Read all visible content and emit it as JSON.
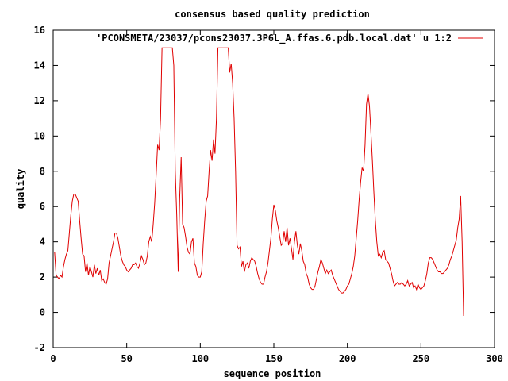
{
  "chart_data": {
    "type": "line",
    "title": "consensus based quality prediction",
    "xlabel": "sequence position",
    "ylabel": "quality",
    "xlim": [
      0,
      300
    ],
    "ylim": [
      -2,
      16
    ],
    "x_ticks": [
      "0",
      "50",
      "100",
      "150",
      "200",
      "250",
      "300"
    ],
    "y_ticks": [
      "-2",
      "0",
      "2",
      "4",
      "6",
      "8",
      "10",
      "12",
      "14",
      "16"
    ],
    "grid": false,
    "legend_position": "top-right",
    "series": [
      {
        "name": "'PCONSMETA/23037/pcons23037.3P6L_A.ffas.6.pdb.local.dat' u 1:2",
        "color": "#e00000",
        "points": [
          [
            1,
            3.4
          ],
          [
            2,
            2.1
          ],
          [
            3,
            2.0
          ],
          [
            4,
            1.9
          ],
          [
            5,
            2.1
          ],
          [
            6,
            2.0
          ],
          [
            7,
            2.6
          ],
          [
            8,
            3.0
          ],
          [
            9,
            3.3
          ],
          [
            10,
            3.5
          ],
          [
            11,
            4.5
          ],
          [
            12,
            5.5
          ],
          [
            13,
            6.3
          ],
          [
            14,
            6.7
          ],
          [
            15,
            6.7
          ],
          [
            16,
            6.5
          ],
          [
            17,
            6.3
          ],
          [
            18,
            5.2
          ],
          [
            19,
            4.2
          ],
          [
            20,
            3.3
          ],
          [
            21,
            3.2
          ],
          [
            22,
            2.3
          ],
          [
            23,
            2.8
          ],
          [
            24,
            2.1
          ],
          [
            25,
            2.6
          ],
          [
            26,
            2.3
          ],
          [
            27,
            2.0
          ],
          [
            28,
            2.7
          ],
          [
            29,
            2.2
          ],
          [
            30,
            2.5
          ],
          [
            31,
            2.1
          ],
          [
            32,
            2.4
          ],
          [
            33,
            1.8
          ],
          [
            34,
            1.9
          ],
          [
            35,
            1.7
          ],
          [
            36,
            1.6
          ],
          [
            37,
            1.9
          ],
          [
            38,
            2.8
          ],
          [
            39,
            3.2
          ],
          [
            40,
            3.6
          ],
          [
            41,
            4.0
          ],
          [
            42,
            4.5
          ],
          [
            43,
            4.5
          ],
          [
            44,
            4.2
          ],
          [
            45,
            3.7
          ],
          [
            46,
            3.2
          ],
          [
            47,
            2.9
          ],
          [
            48,
            2.7
          ],
          [
            49,
            2.6
          ],
          [
            50,
            2.4
          ],
          [
            51,
            2.3
          ],
          [
            52,
            2.4
          ],
          [
            53,
            2.5
          ],
          [
            54,
            2.7
          ],
          [
            55,
            2.7
          ],
          [
            56,
            2.8
          ],
          [
            57,
            2.6
          ],
          [
            58,
            2.5
          ],
          [
            59,
            2.8
          ],
          [
            60,
            3.2
          ],
          [
            61,
            3.0
          ],
          [
            62,
            2.7
          ],
          [
            63,
            2.8
          ],
          [
            64,
            3.2
          ],
          [
            65,
            4.0
          ],
          [
            66,
            4.3
          ],
          [
            67,
            4.0
          ],
          [
            68,
            5.0
          ],
          [
            69,
            6.2
          ],
          [
            70,
            7.8
          ],
          [
            71,
            9.5
          ],
          [
            72,
            9.2
          ],
          [
            73,
            11.0
          ],
          [
            74,
            15.0
          ],
          [
            75,
            15.0
          ],
          [
            76,
            15.0
          ],
          [
            77,
            15.0
          ],
          [
            78,
            15.0
          ],
          [
            79,
            15.0
          ],
          [
            80,
            15.0
          ],
          [
            81,
            15.0
          ],
          [
            82,
            14.0
          ],
          [
            83,
            8.0
          ],
          [
            84,
            5.5
          ],
          [
            85,
            2.3
          ],
          [
            86,
            6.5
          ],
          [
            87,
            8.8
          ],
          [
            88,
            5.0
          ],
          [
            89,
            4.8
          ],
          [
            90,
            4.3
          ],
          [
            91,
            3.7
          ],
          [
            92,
            3.4
          ],
          [
            93,
            3.3
          ],
          [
            94,
            4.0
          ],
          [
            95,
            4.2
          ],
          [
            96,
            2.8
          ],
          [
            97,
            2.6
          ],
          [
            98,
            2.1
          ],
          [
            99,
            2.0
          ],
          [
            100,
            2.0
          ],
          [
            101,
            2.3
          ],
          [
            102,
            3.9
          ],
          [
            103,
            5.2
          ],
          [
            104,
            6.3
          ],
          [
            105,
            6.6
          ],
          [
            106,
            8.0
          ],
          [
            107,
            9.2
          ],
          [
            108,
            8.6
          ],
          [
            109,
            9.8
          ],
          [
            110,
            9.0
          ],
          [
            111,
            11.0
          ],
          [
            112,
            15.0
          ],
          [
            113,
            15.0
          ],
          [
            114,
            15.0
          ],
          [
            115,
            15.0
          ],
          [
            116,
            15.0
          ],
          [
            117,
            15.0
          ],
          [
            118,
            15.0
          ],
          [
            119,
            15.0
          ],
          [
            120,
            13.6
          ],
          [
            121,
            14.1
          ],
          [
            122,
            13.0
          ],
          [
            123,
            11.0
          ],
          [
            124,
            8.0
          ],
          [
            125,
            3.8
          ],
          [
            126,
            3.6
          ],
          [
            127,
            3.7
          ],
          [
            128,
            2.6
          ],
          [
            129,
            2.9
          ],
          [
            130,
            2.3
          ],
          [
            131,
            2.7
          ],
          [
            132,
            2.8
          ],
          [
            133,
            2.5
          ],
          [
            134,
            2.9
          ],
          [
            135,
            3.1
          ],
          [
            136,
            3.0
          ],
          [
            137,
            2.9
          ],
          [
            138,
            2.6
          ],
          [
            139,
            2.2
          ],
          [
            140,
            1.9
          ],
          [
            141,
            1.7
          ],
          [
            142,
            1.6
          ],
          [
            143,
            1.6
          ],
          [
            144,
            2.0
          ],
          [
            145,
            2.3
          ],
          [
            146,
            2.8
          ],
          [
            147,
            3.5
          ],
          [
            148,
            4.2
          ],
          [
            149,
            5.3
          ],
          [
            150,
            6.1
          ],
          [
            151,
            5.8
          ],
          [
            152,
            5.2
          ],
          [
            153,
            4.8
          ],
          [
            154,
            4.3
          ],
          [
            155,
            3.8
          ],
          [
            156,
            3.9
          ],
          [
            157,
            4.6
          ],
          [
            158,
            4.0
          ],
          [
            159,
            4.8
          ],
          [
            160,
            3.8
          ],
          [
            161,
            4.2
          ],
          [
            162,
            3.6
          ],
          [
            163,
            3.0
          ],
          [
            164,
            4.0
          ],
          [
            165,
            4.6
          ],
          [
            166,
            3.8
          ],
          [
            167,
            3.3
          ],
          [
            168,
            3.9
          ],
          [
            169,
            3.5
          ],
          [
            170,
            2.9
          ],
          [
            171,
            2.7
          ],
          [
            172,
            2.2
          ],
          [
            173,
            2.0
          ],
          [
            174,
            1.6
          ],
          [
            175,
            1.4
          ],
          [
            176,
            1.3
          ],
          [
            177,
            1.3
          ],
          [
            178,
            1.5
          ],
          [
            179,
            1.9
          ],
          [
            180,
            2.3
          ],
          [
            181,
            2.6
          ],
          [
            182,
            3.0
          ],
          [
            183,
            2.8
          ],
          [
            184,
            2.5
          ],
          [
            185,
            2.2
          ],
          [
            186,
            2.4
          ],
          [
            187,
            2.2
          ],
          [
            188,
            2.3
          ],
          [
            189,
            2.4
          ],
          [
            190,
            2.1
          ],
          [
            191,
            1.9
          ],
          [
            192,
            1.7
          ],
          [
            193,
            1.5
          ],
          [
            194,
            1.3
          ],
          [
            195,
            1.2
          ],
          [
            196,
            1.1
          ],
          [
            197,
            1.1
          ],
          [
            198,
            1.2
          ],
          [
            199,
            1.3
          ],
          [
            200,
            1.5
          ],
          [
            201,
            1.6
          ],
          [
            202,
            1.9
          ],
          [
            203,
            2.2
          ],
          [
            204,
            2.6
          ],
          [
            205,
            3.2
          ],
          [
            206,
            4.2
          ],
          [
            207,
            5.2
          ],
          [
            208,
            6.4
          ],
          [
            209,
            7.4
          ],
          [
            210,
            8.2
          ],
          [
            211,
            8.0
          ],
          [
            212,
            9.5
          ],
          [
            213,
            11.8
          ],
          [
            214,
            12.4
          ],
          [
            215,
            11.7
          ],
          [
            216,
            10.2
          ],
          [
            217,
            8.6
          ],
          [
            218,
            6.8
          ],
          [
            219,
            5.2
          ],
          [
            220,
            4.0
          ],
          [
            221,
            3.2
          ],
          [
            222,
            3.3
          ],
          [
            223,
            3.1
          ],
          [
            224,
            3.4
          ],
          [
            225,
            3.5
          ],
          [
            226,
            3.0
          ],
          [
            227,
            2.9
          ],
          [
            228,
            2.8
          ],
          [
            229,
            2.5
          ],
          [
            230,
            2.2
          ],
          [
            231,
            1.8
          ],
          [
            232,
            1.5
          ],
          [
            233,
            1.6
          ],
          [
            234,
            1.7
          ],
          [
            235,
            1.6
          ],
          [
            236,
            1.6
          ],
          [
            237,
            1.7
          ],
          [
            238,
            1.6
          ],
          [
            239,
            1.5
          ],
          [
            240,
            1.6
          ],
          [
            241,
            1.8
          ],
          [
            242,
            1.5
          ],
          [
            243,
            1.6
          ],
          [
            244,
            1.7
          ],
          [
            245,
            1.4
          ],
          [
            246,
            1.5
          ],
          [
            247,
            1.3
          ],
          [
            248,
            1.6
          ],
          [
            249,
            1.4
          ],
          [
            250,
            1.3
          ],
          [
            251,
            1.4
          ],
          [
            252,
            1.5
          ],
          [
            253,
            1.8
          ],
          [
            254,
            2.2
          ],
          [
            255,
            2.8
          ],
          [
            256,
            3.1
          ],
          [
            257,
            3.1
          ],
          [
            258,
            3.0
          ],
          [
            259,
            2.8
          ],
          [
            260,
            2.6
          ],
          [
            261,
            2.4
          ],
          [
            262,
            2.3
          ],
          [
            263,
            2.3
          ],
          [
            264,
            2.2
          ],
          [
            265,
            2.2
          ],
          [
            266,
            2.3
          ],
          [
            267,
            2.4
          ],
          [
            268,
            2.5
          ],
          [
            269,
            2.7
          ],
          [
            270,
            3.0
          ],
          [
            271,
            3.2
          ],
          [
            272,
            3.5
          ],
          [
            273,
            3.8
          ],
          [
            274,
            4.1
          ],
          [
            275,
            4.8
          ],
          [
            276,
            5.3
          ],
          [
            277,
            6.6
          ],
          [
            278,
            4.0
          ],
          [
            279,
            -0.2
          ]
        ]
      }
    ]
  }
}
